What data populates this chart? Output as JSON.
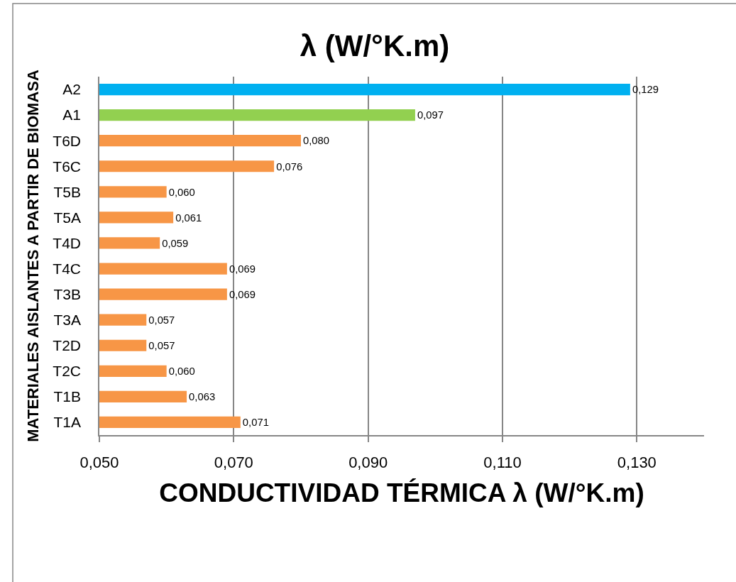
{
  "chart_data": {
    "type": "bar",
    "orientation": "horizontal",
    "title": "λ (W/°K.m)",
    "xlabel": "CONDUCTIVIDAD TÉRMICA λ (W/°K.m)",
    "ylabel": "MATERIALES AISLANTES A PARTIR DE BIOMASA",
    "categories": [
      "A2",
      "A1",
      "T6D",
      "T6C",
      "T5B",
      "T5A",
      "T4D",
      "T4C",
      "T3B",
      "T3A",
      "T2D",
      "T2C",
      "T1B",
      "T1A"
    ],
    "values": [
      0.129,
      0.097,
      0.08,
      0.076,
      0.06,
      0.061,
      0.059,
      0.069,
      0.069,
      0.057,
      0.057,
      0.06,
      0.063,
      0.071
    ],
    "colors": [
      "#00b0f0",
      "#92d050",
      "#f79646",
      "#f79646",
      "#f79646",
      "#f79646",
      "#f79646",
      "#f79646",
      "#f79646",
      "#f79646",
      "#f79646",
      "#f79646",
      "#f79646",
      "#f79646"
    ],
    "value_labels": [
      "0,129",
      "0,097",
      "0,080",
      "0,076",
      "0,060",
      "0,061",
      "0,059",
      "0,069",
      "0,069",
      "0,057",
      "0,057",
      "0,060",
      "0,063",
      "0,071"
    ],
    "xlim": [
      0.05,
      0.14
    ],
    "xticks": [
      {
        "value": 0.05,
        "label": "0,050"
      },
      {
        "value": 0.07,
        "label": "0,070"
      },
      {
        "value": 0.09,
        "label": "0,090"
      },
      {
        "value": 0.11,
        "label": "0,110"
      },
      {
        "value": 0.13,
        "label": "0,130"
      }
    ],
    "grid": "x"
  }
}
